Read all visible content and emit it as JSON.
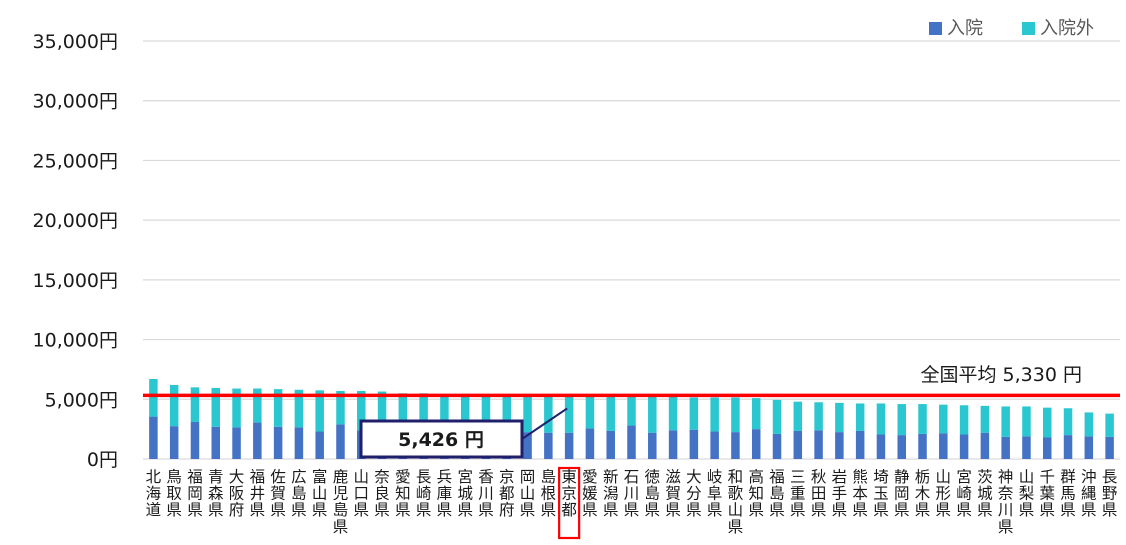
{
  "chart_data": {
    "type": "bar",
    "stacked": true,
    "categories": [
      "北海道",
      "鳥取県",
      "福岡県",
      "青森県",
      "大阪府",
      "福井県",
      "佐賀県",
      "広島県",
      "富山県",
      "鹿児島県",
      "山口県",
      "奈良県",
      "愛知県",
      "長崎県",
      "兵庫県",
      "宮城県",
      "香川県",
      "京都府",
      "岡山県",
      "島根県",
      "東京都",
      "愛媛県",
      "新潟県",
      "石川県",
      "徳島県",
      "滋賀県",
      "大分県",
      "岐阜県",
      "和歌山県",
      "高知県",
      "福島県",
      "三重県",
      "秋田県",
      "岩手県",
      "熊本県",
      "埼玉県",
      "静岡県",
      "栃木県",
      "山形県",
      "宮崎県",
      "茨城県",
      "神奈川県",
      "山梨県",
      "千葉県",
      "群馬県",
      "沖縄県",
      "長野県"
    ],
    "series": [
      {
        "name": "入院",
        "color": "#4472c4",
        "values": [
          3550,
          2750,
          3100,
          2700,
          2650,
          3050,
          2700,
          2650,
          2300,
          2900,
          2400,
          2350,
          2300,
          2300,
          2300,
          2300,
          2350,
          2300,
          2250,
          2200,
          2200,
          2550,
          2350,
          2800,
          2200,
          2400,
          2450,
          2300,
          2250,
          2500,
          2100,
          2350,
          2400,
          2250,
          2350,
          2050,
          2000,
          2100,
          2150,
          2050,
          2200,
          1850,
          1900,
          1800,
          2000,
          1900,
          1850
        ]
      },
      {
        "name": "入院外",
        "color": "#2bc7d1",
        "values": [
          3150,
          3450,
          2900,
          3250,
          3250,
          2850,
          3150,
          3150,
          3450,
          2800,
          3300,
          3300,
          3200,
          3200,
          3150,
          3150,
          3050,
          3050,
          3100,
          3100,
          3226,
          2800,
          2950,
          2450,
          3000,
          2800,
          2700,
          2850,
          2900,
          2600,
          2850,
          2450,
          2350,
          2450,
          2300,
          2600,
          2600,
          2500,
          2400,
          2450,
          2250,
          2550,
          2500,
          2500,
          2250,
          2000,
          1950
        ]
      }
    ],
    "ylim": [
      0,
      35000
    ],
    "yticks": [
      0,
      5000,
      10000,
      15000,
      20000,
      25000,
      30000,
      35000
    ],
    "ytick_labels": [
      "0円",
      "5,000円",
      "10,000円",
      "15,000円",
      "20,000円",
      "25,000円",
      "30,000円",
      "35,000円"
    ],
    "grid": true,
    "legend_position": "top-right",
    "average": {
      "value": 5330,
      "label": "全国平均 5,330 円",
      "color": "#ff0000"
    },
    "highlight": {
      "category": "東京都",
      "label": "5,426 円",
      "highlight_color": "#ff0000",
      "box_color": "#1f1f6b"
    }
  }
}
